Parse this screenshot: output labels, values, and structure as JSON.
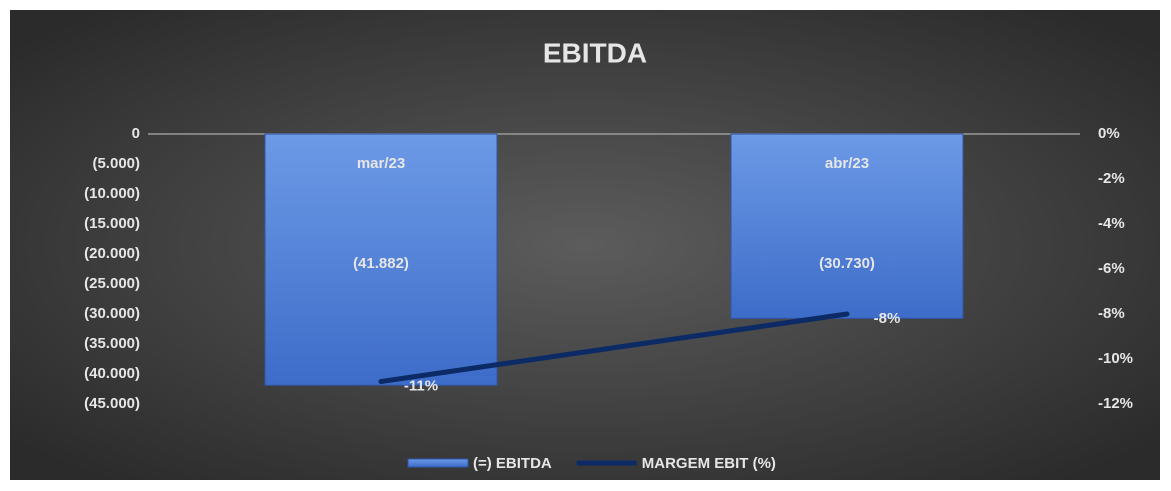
{
  "chart_data": {
    "type": "bar",
    "title": "EBITDA",
    "categories": [
      "mar/23",
      "abr/23"
    ],
    "series": [
      {
        "name": "(=) EBITDA",
        "type": "bar",
        "color": "#4a7bd6",
        "values": [
          -41882,
          -30730
        ],
        "value_labels": [
          "(41.882)",
          "(30.730)"
        ]
      },
      {
        "name": "MARGEM EBIT (%)",
        "type": "line",
        "axis": "y2",
        "color": "#0b2a66",
        "values": [
          -11,
          -8
        ],
        "value_labels": [
          "-11%",
          "-8%"
        ]
      }
    ],
    "ylim": [
      -45000,
      0
    ],
    "yticks": [
      0,
      {
        "value": -5000,
        "label": "(5.000)"
      },
      {
        "value": -10000,
        "label": "(10.000)"
      },
      {
        "value": -15000,
        "label": "(15.000)"
      },
      {
        "value": -20000,
        "label": "(20.000)"
      },
      {
        "value": -25000,
        "label": "(25.000)"
      },
      {
        "value": -30000,
        "label": "(30.000)"
      },
      {
        "value": -35000,
        "label": "(35.000)"
      },
      {
        "value": -40000,
        "label": "(40.000)"
      },
      {
        "value": -45000,
        "label": "(45.000)"
      }
    ],
    "y2lim": [
      -12,
      0
    ],
    "y2ticks": [
      {
        "value": 0,
        "label": "0%"
      },
      {
        "value": -2,
        "label": "-2%"
      },
      {
        "value": -4,
        "label": "-4%"
      },
      {
        "value": -6,
        "label": "-6%"
      },
      {
        "value": -8,
        "label": "-8%"
      },
      {
        "value": -10,
        "label": "-10%"
      },
      {
        "value": -12,
        "label": "-12%"
      }
    ],
    "grid": false
  }
}
